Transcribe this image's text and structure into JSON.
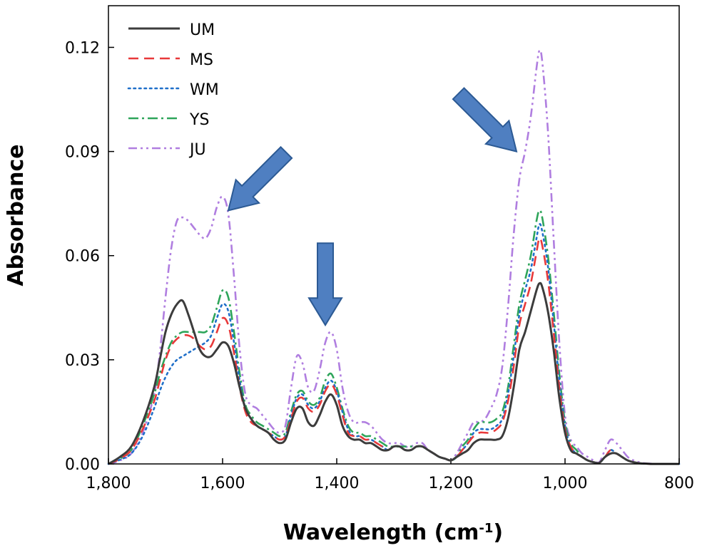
{
  "chart_data": {
    "type": "line",
    "title": "",
    "xlabel": "Wavelength (cm",
    "xlabel_sup": "-1",
    "xlabel_close": ")",
    "ylabel": "Absorbance",
    "xlim": [
      1800,
      800
    ],
    "ylim": [
      0,
      0.132
    ],
    "xticks": [
      1800,
      1600,
      1400,
      1200,
      1000,
      800
    ],
    "xtick_labels": [
      "1,800",
      "1,600",
      "1,400",
      "1,200",
      "1,000",
      "800"
    ],
    "yticks": [
      0,
      0.03,
      0.06,
      0.09,
      0.12
    ],
    "ytick_labels": [
      "0.00",
      "0.03",
      "0.06",
      "0.09",
      "0.12"
    ],
    "legend_position": "top-left",
    "annotations": [
      {
        "type": "arrow",
        "target_x": 1590,
        "target_y": 0.073,
        "direction": "down-left"
      },
      {
        "type": "arrow",
        "target_x": 1420,
        "target_y": 0.04,
        "direction": "down"
      },
      {
        "type": "arrow",
        "target_x": 1085,
        "target_y": 0.09,
        "direction": "down-right"
      }
    ],
    "x": [
      1800,
      1780,
      1760,
      1740,
      1720,
      1710,
      1700,
      1690,
      1680,
      1670,
      1660,
      1650,
      1640,
      1630,
      1620,
      1610,
      1600,
      1590,
      1580,
      1570,
      1560,
      1550,
      1540,
      1530,
      1520,
      1510,
      1500,
      1490,
      1480,
      1470,
      1460,
      1450,
      1440,
      1430,
      1420,
      1410,
      1400,
      1390,
      1380,
      1370,
      1360,
      1350,
      1340,
      1330,
      1320,
      1310,
      1300,
      1290,
      1280,
      1270,
      1260,
      1250,
      1240,
      1230,
      1220,
      1210,
      1200,
      1190,
      1180,
      1170,
      1160,
      1150,
      1140,
      1130,
      1120,
      1110,
      1100,
      1090,
      1080,
      1070,
      1060,
      1050,
      1045,
      1040,
      1030,
      1020,
      1010,
      1000,
      990,
      980,
      970,
      960,
      950,
      940,
      930,
      920,
      910,
      900,
      890,
      880,
      870,
      860,
      850,
      840,
      830,
      820,
      810,
      800
    ],
    "series": [
      {
        "name": "UM",
        "color": "#3c3c3c",
        "dash": "solid",
        "values": [
          0.0,
          0.002,
          0.005,
          0.012,
          0.022,
          0.03,
          0.038,
          0.043,
          0.046,
          0.047,
          0.043,
          0.038,
          0.033,
          0.031,
          0.031,
          0.033,
          0.035,
          0.034,
          0.029,
          0.022,
          0.016,
          0.013,
          0.011,
          0.01,
          0.009,
          0.007,
          0.006,
          0.007,
          0.012,
          0.016,
          0.016,
          0.012,
          0.011,
          0.014,
          0.018,
          0.02,
          0.017,
          0.011,
          0.008,
          0.007,
          0.007,
          0.006,
          0.006,
          0.005,
          0.004,
          0.004,
          0.005,
          0.005,
          0.004,
          0.004,
          0.005,
          0.005,
          0.004,
          0.003,
          0.002,
          0.0015,
          0.001,
          0.002,
          0.003,
          0.004,
          0.006,
          0.007,
          0.007,
          0.007,
          0.007,
          0.008,
          0.013,
          0.022,
          0.033,
          0.038,
          0.044,
          0.05,
          0.052,
          0.051,
          0.044,
          0.033,
          0.019,
          0.009,
          0.004,
          0.003,
          0.002,
          0.001,
          0.0005,
          0.0003,
          0.002,
          0.003,
          0.003,
          0.002,
          0.001,
          0.0005,
          0.0002,
          0.0001,
          0.0,
          0.0,
          0.0,
          0.0,
          0.0,
          0.0
        ]
      },
      {
        "name": "MS",
        "color": "#e8393a",
        "dash": "dashed",
        "values": [
          0.0,
          0.0015,
          0.004,
          0.01,
          0.018,
          0.024,
          0.03,
          0.034,
          0.036,
          0.037,
          0.037,
          0.036,
          0.034,
          0.033,
          0.034,
          0.038,
          0.042,
          0.04,
          0.032,
          0.022,
          0.015,
          0.012,
          0.011,
          0.01,
          0.009,
          0.008,
          0.007,
          0.008,
          0.013,
          0.018,
          0.019,
          0.016,
          0.015,
          0.017,
          0.021,
          0.023,
          0.02,
          0.014,
          0.009,
          0.008,
          0.008,
          0.007,
          0.007,
          0.006,
          0.005,
          0.004,
          0.005,
          0.005,
          0.004,
          0.004,
          0.005,
          0.005,
          0.004,
          0.003,
          0.002,
          0.0015,
          0.001,
          0.002,
          0.004,
          0.006,
          0.008,
          0.009,
          0.009,
          0.009,
          0.01,
          0.012,
          0.018,
          0.028,
          0.04,
          0.046,
          0.052,
          0.061,
          0.065,
          0.063,
          0.053,
          0.038,
          0.022,
          0.01,
          0.005,
          0.003,
          0.002,
          0.001,
          0.0005,
          0.0003,
          0.002,
          0.004,
          0.003,
          0.002,
          0.001,
          0.0005,
          0.0002,
          0.0001,
          0.0,
          0.0,
          0.0,
          0.0,
          0.0,
          0.0
        ]
      },
      {
        "name": "WM",
        "color": "#1f6fc9",
        "dash": "dotted",
        "values": [
          0.0,
          0.0012,
          0.003,
          0.008,
          0.016,
          0.021,
          0.025,
          0.028,
          0.03,
          0.031,
          0.032,
          0.033,
          0.034,
          0.035,
          0.037,
          0.042,
          0.046,
          0.044,
          0.035,
          0.024,
          0.016,
          0.013,
          0.011,
          0.01,
          0.009,
          0.008,
          0.007,
          0.008,
          0.014,
          0.019,
          0.02,
          0.017,
          0.016,
          0.018,
          0.022,
          0.024,
          0.021,
          0.015,
          0.01,
          0.008,
          0.008,
          0.007,
          0.007,
          0.006,
          0.005,
          0.004,
          0.005,
          0.005,
          0.004,
          0.004,
          0.005,
          0.005,
          0.004,
          0.003,
          0.002,
          0.0015,
          0.001,
          0.002,
          0.004,
          0.006,
          0.009,
          0.01,
          0.01,
          0.01,
          0.011,
          0.013,
          0.02,
          0.031,
          0.043,
          0.05,
          0.056,
          0.065,
          0.069,
          0.067,
          0.057,
          0.041,
          0.024,
          0.011,
          0.005,
          0.003,
          0.002,
          0.001,
          0.0005,
          0.0003,
          0.002,
          0.004,
          0.003,
          0.002,
          0.001,
          0.0005,
          0.0002,
          0.0001,
          0.0,
          0.0,
          0.0,
          0.0,
          0.0,
          0.0
        ]
      },
      {
        "name": "YS",
        "color": "#2ea55a",
        "dash": "dashdot",
        "values": [
          0.0,
          0.0015,
          0.004,
          0.011,
          0.02,
          0.026,
          0.031,
          0.035,
          0.037,
          0.038,
          0.038,
          0.038,
          0.038,
          0.038,
          0.04,
          0.045,
          0.05,
          0.048,
          0.038,
          0.026,
          0.017,
          0.014,
          0.012,
          0.011,
          0.01,
          0.009,
          0.008,
          0.009,
          0.015,
          0.02,
          0.021,
          0.018,
          0.017,
          0.019,
          0.024,
          0.026,
          0.022,
          0.016,
          0.011,
          0.009,
          0.009,
          0.008,
          0.008,
          0.007,
          0.006,
          0.005,
          0.005,
          0.005,
          0.005,
          0.005,
          0.005,
          0.005,
          0.004,
          0.003,
          0.002,
          0.0015,
          0.001,
          0.002,
          0.005,
          0.007,
          0.01,
          0.012,
          0.012,
          0.012,
          0.013,
          0.015,
          0.022,
          0.034,
          0.046,
          0.053,
          0.06,
          0.07,
          0.073,
          0.071,
          0.06,
          0.044,
          0.026,
          0.012,
          0.006,
          0.004,
          0.002,
          0.001,
          0.0005,
          0.0003,
          0.002,
          0.004,
          0.003,
          0.002,
          0.001,
          0.0005,
          0.0002,
          0.0001,
          0.0,
          0.0,
          0.0,
          0.0,
          0.0,
          0.0
        ]
      },
      {
        "name": "JU",
        "color": "#b07ee0",
        "dash": "dashdotdot",
        "values": [
          0.0,
          0.001,
          0.003,
          0.009,
          0.02,
          0.032,
          0.048,
          0.062,
          0.07,
          0.071,
          0.07,
          0.068,
          0.066,
          0.065,
          0.068,
          0.074,
          0.077,
          0.072,
          0.054,
          0.033,
          0.02,
          0.017,
          0.016,
          0.014,
          0.012,
          0.01,
          0.009,
          0.011,
          0.022,
          0.031,
          0.029,
          0.022,
          0.021,
          0.027,
          0.035,
          0.038,
          0.033,
          0.022,
          0.015,
          0.012,
          0.012,
          0.012,
          0.011,
          0.009,
          0.007,
          0.006,
          0.006,
          0.006,
          0.005,
          0.005,
          0.006,
          0.006,
          0.004,
          0.003,
          0.002,
          0.0015,
          0.001,
          0.003,
          0.006,
          0.009,
          0.012,
          0.012,
          0.013,
          0.016,
          0.02,
          0.028,
          0.045,
          0.066,
          0.082,
          0.09,
          0.1,
          0.114,
          0.119,
          0.116,
          0.096,
          0.065,
          0.035,
          0.014,
          0.007,
          0.005,
          0.003,
          0.002,
          0.001,
          0.0005,
          0.004,
          0.007,
          0.006,
          0.004,
          0.002,
          0.001,
          0.0005,
          0.0002,
          0.0001,
          0.0,
          0.0,
          0.0,
          0.0,
          0.0
        ]
      }
    ]
  }
}
